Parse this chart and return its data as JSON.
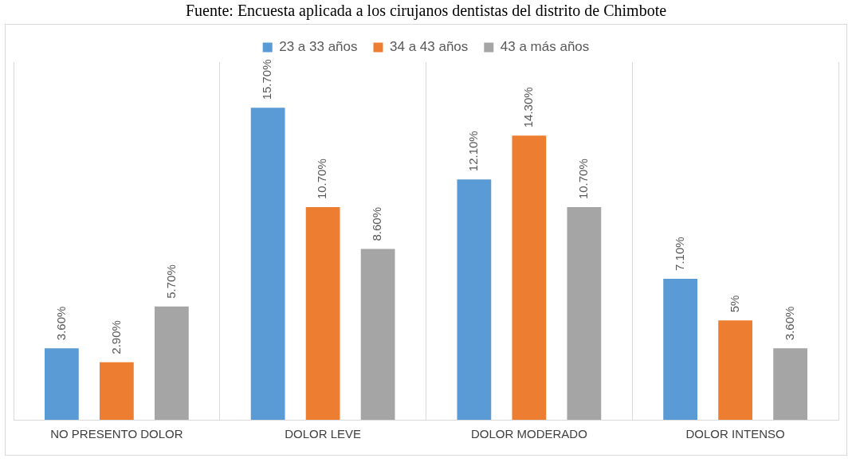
{
  "chart_data": {
    "type": "bar",
    "annotations": [
      "Fuente: Encuesta aplicada a los cirujanos dentistas del distrito de Chimbote"
    ],
    "categories": [
      "NO PRESENTO DOLOR",
      "DOLOR LEVE",
      "DOLOR MODERADO",
      "DOLOR INTENSO"
    ],
    "series": [
      {
        "name": "23 a 33 años",
        "color": "#5b9bd5",
        "values": [
          3.6,
          15.7,
          12.1,
          7.1
        ],
        "value_labels": [
          "3.60%",
          "15.70%",
          "12.10%",
          "7.10%"
        ]
      },
      {
        "name": "34 a 43 años",
        "color": "#ed7d31",
        "values": [
          2.9,
          10.7,
          14.3,
          5
        ],
        "value_labels": [
          "2.90%",
          "10.70%",
          "14.30%",
          "5%"
        ]
      },
      {
        "name": "43 a más años",
        "color": "#a5a5a5",
        "values": [
          5.7,
          8.6,
          10.7,
          3.6
        ],
        "value_labels": [
          "5.70%",
          "8.60%",
          "10.70%",
          "3.60%"
        ]
      }
    ],
    "grid": "x",
    "legend": "top",
    "tick_labels": "x"
  }
}
